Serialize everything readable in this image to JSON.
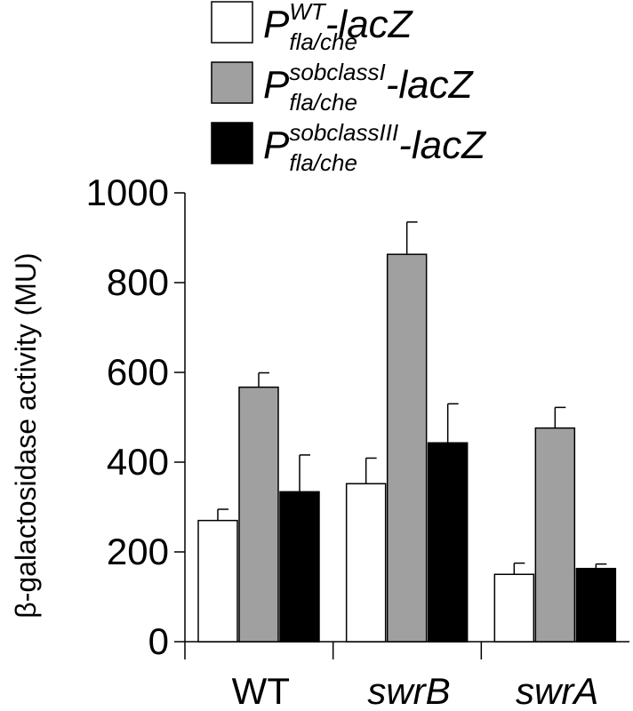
{
  "chart_data": {
    "type": "bar",
    "title": "",
    "xlabel": "",
    "ylabel": "β-galactosidase activity (MU)",
    "ylim": [
      0,
      1000
    ],
    "yticks": [
      "0",
      "200",
      "400",
      "600",
      "800",
      "1000"
    ],
    "grid": false,
    "legend_position": "top",
    "categories": [
      {
        "label": "WT",
        "italic": false
      },
      {
        "label": "swrB",
        "italic": true
      },
      {
        "label": "swrA",
        "italic": true
      }
    ],
    "series": [
      {
        "legend": {
          "prefix": "P",
          "subscript": "fla/che",
          "superscript": "WT",
          "suffix": "-lacZ"
        },
        "color": "#ffffff",
        "values": [
          270,
          352,
          150
        ],
        "errors": [
          25,
          57,
          25
        ]
      },
      {
        "legend": {
          "prefix": "P",
          "subscript": "fla/che",
          "superscript": "sobclassI",
          "suffix": "-lacZ"
        },
        "color": "#a0a0a0",
        "values": [
          567,
          863,
          476
        ],
        "errors": [
          32,
          72,
          46
        ]
      },
      {
        "legend": {
          "prefix": "P",
          "subscript": "fla/che",
          "superscript": "sobclassIII",
          "suffix": "-lacZ"
        },
        "color": "#000000",
        "values": [
          334,
          443,
          163
        ],
        "errors": [
          82,
          87,
          10
        ]
      }
    ]
  }
}
